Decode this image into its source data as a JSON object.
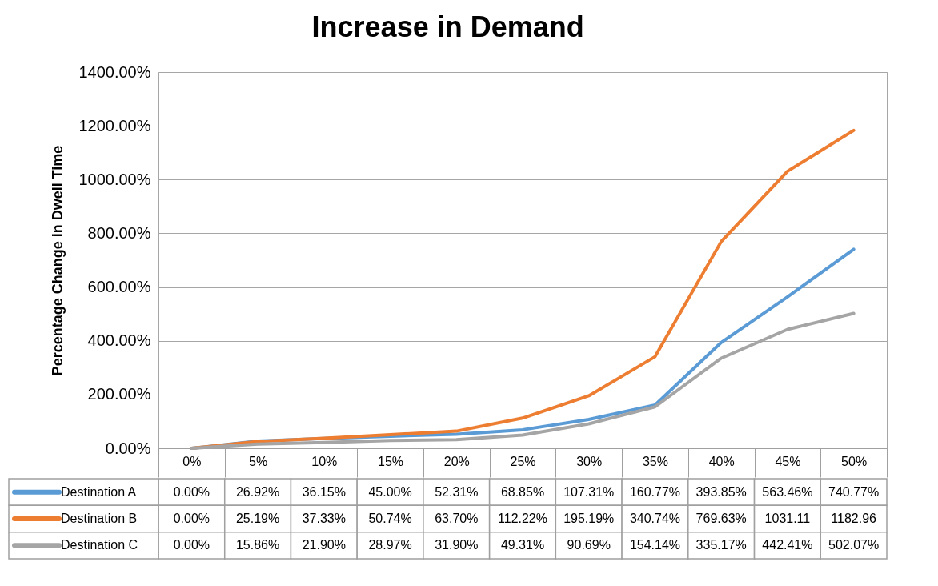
{
  "chart_data": {
    "type": "line",
    "title": "Increase in Demand",
    "ylabel": "Percentage Change in Dwell Time",
    "categories": [
      "0%",
      "5%",
      "10%",
      "15%",
      "20%",
      "25%",
      "30%",
      "35%",
      "40%",
      "45%",
      "50%"
    ],
    "series": [
      {
        "name": "Destination A",
        "color": "#5b9bd5",
        "values": [
          0,
          26.92,
          36.15,
          45.0,
          52.31,
          68.85,
          107.31,
          160.77,
          393.85,
          563.46,
          740.77
        ],
        "value_labels": [
          "0.00%",
          "26.92%",
          "36.15%",
          "45.00%",
          "52.31%",
          "68.85%",
          "107.31%",
          "160.77%",
          "393.85%",
          "563.46%",
          "740.77%"
        ]
      },
      {
        "name": "Destination B",
        "color": "#ed7d31",
        "values": [
          0,
          25.19,
          37.33,
          50.74,
          63.7,
          112.22,
          195.19,
          340.74,
          769.63,
          1031.11,
          1182.96
        ],
        "value_labels": [
          "0.00%",
          "25.19%",
          "37.33%",
          "50.74%",
          "63.70%",
          "112.22%",
          "195.19%",
          "340.74%",
          "769.63%",
          "1031.11",
          "1182.96"
        ]
      },
      {
        "name": "Destination C",
        "color": "#a5a5a5",
        "values": [
          0,
          15.86,
          21.9,
          28.97,
          31.9,
          49.31,
          90.69,
          154.14,
          335.17,
          442.41,
          502.07
        ],
        "value_labels": [
          "0.00%",
          "15.86%",
          "21.90%",
          "28.97%",
          "31.90%",
          "49.31%",
          "90.69%",
          "154.14%",
          "335.17%",
          "442.41%",
          "502.07%"
        ]
      }
    ],
    "ylim": [
      0,
      1400
    ],
    "yticks": [
      {
        "value": 0,
        "label": "0.00%"
      },
      {
        "value": 200,
        "label": "200.00%"
      },
      {
        "value": 400,
        "label": "400.00%"
      },
      {
        "value": 600,
        "label": "600.00%"
      },
      {
        "value": 800,
        "label": "800.00%"
      },
      {
        "value": 1000,
        "label": "1000.00%"
      },
      {
        "value": 1200,
        "label": "1200.00%"
      },
      {
        "value": 1400,
        "label": "1400.00%"
      }
    ],
    "grid": "y",
    "legend": "bottom",
    "line_style": "solid",
    "marker": "none"
  }
}
